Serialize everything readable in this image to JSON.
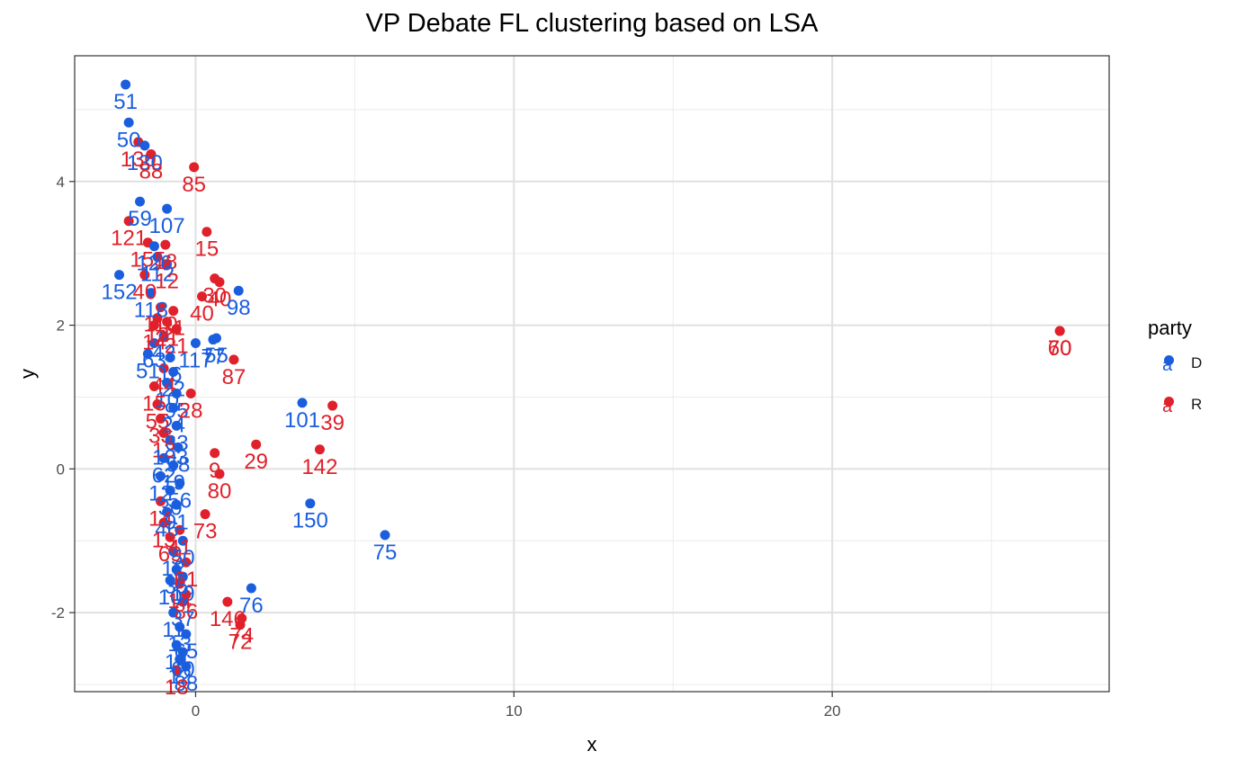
{
  "chart_data": {
    "type": "scatter",
    "title": "VP Debate FL clustering based on LSA",
    "xlabel": "x",
    "ylabel": "y",
    "xlim": [
      -3.8,
      28.7
    ],
    "ylim": [
      -3.1,
      5.75
    ],
    "xticks": [
      0,
      10,
      20
    ],
    "yticks": [
      -2,
      0,
      2,
      4
    ],
    "grid": true,
    "legend": {
      "title": "party",
      "position": "right",
      "entries": [
        "D",
        "R"
      ]
    },
    "colors": {
      "D": "#1a5ede",
      "R": "#e0202a"
    },
    "points": [
      {
        "x": -2.2,
        "y": 5.35,
        "label": "51",
        "party": "D"
      },
      {
        "x": -2.1,
        "y": 4.82,
        "label": "50",
        "party": "D"
      },
      {
        "x": -1.8,
        "y": 4.55,
        "label": "130",
        "party": "R"
      },
      {
        "x": -1.6,
        "y": 4.5,
        "label": "130",
        "party": "D"
      },
      {
        "x": -1.4,
        "y": 4.38,
        "label": "88",
        "party": "R"
      },
      {
        "x": -0.05,
        "y": 4.2,
        "label": "85",
        "party": "R"
      },
      {
        "x": -1.75,
        "y": 3.72,
        "label": "59",
        "party": "D"
      },
      {
        "x": -0.9,
        "y": 3.62,
        "label": "107",
        "party": "D"
      },
      {
        "x": -2.1,
        "y": 3.45,
        "label": "121",
        "party": "R"
      },
      {
        "x": 0.35,
        "y": 3.3,
        "label": "15",
        "party": "R"
      },
      {
        "x": -1.5,
        "y": 3.15,
        "label": "155",
        "party": "R"
      },
      {
        "x": -1.3,
        "y": 3.1,
        "label": "126",
        "party": "D"
      },
      {
        "x": -0.95,
        "y": 3.12,
        "label": "18",
        "party": "R"
      },
      {
        "x": -1.2,
        "y": 2.95,
        "label": "112",
        "party": "D"
      },
      {
        "x": -0.9,
        "y": 2.85,
        "label": "12",
        "party": "R"
      },
      {
        "x": -2.4,
        "y": 2.7,
        "label": "152",
        "party": "D"
      },
      {
        "x": -1.6,
        "y": 2.7,
        "label": "40",
        "party": "R"
      },
      {
        "x": 0.6,
        "y": 2.65,
        "label": "30",
        "party": "R"
      },
      {
        "x": 0.75,
        "y": 2.6,
        "label": "40",
        "party": "R"
      },
      {
        "x": 1.35,
        "y": 2.48,
        "label": "98",
        "party": "D"
      },
      {
        "x": 0.2,
        "y": 2.4,
        "label": "40",
        "party": "R"
      },
      {
        "x": -1.4,
        "y": 2.45,
        "label": "118",
        "party": "D"
      },
      {
        "x": -1.1,
        "y": 2.25,
        "label": "110",
        "party": "R"
      },
      {
        "x": -0.7,
        "y": 2.2,
        "label": "31",
        "party": "R"
      },
      {
        "x": -1.2,
        "y": 2.1,
        "label": "13",
        "party": "R"
      },
      {
        "x": -0.9,
        "y": 2.05,
        "label": "21",
        "party": "R"
      },
      {
        "x": -1.3,
        "y": 2.0,
        "label": "14",
        "party": "R"
      },
      {
        "x": -0.6,
        "y": 1.95,
        "label": "21",
        "party": "R"
      },
      {
        "x": -1.0,
        "y": 1.85,
        "label": "42",
        "party": "D"
      },
      {
        "x": -1.3,
        "y": 1.75,
        "label": "63",
        "party": "D"
      },
      {
        "x": 0.55,
        "y": 1.8,
        "label": "77",
        "party": "D"
      },
      {
        "x": 0.65,
        "y": 1.82,
        "label": "55",
        "party": "D"
      },
      {
        "x": 0.0,
        "y": 1.75,
        "label": "117",
        "party": "D"
      },
      {
        "x": -1.5,
        "y": 1.6,
        "label": "51",
        "party": "D"
      },
      {
        "x": -0.8,
        "y": 1.55,
        "label": "16",
        "party": "D"
      },
      {
        "x": 1.2,
        "y": 1.52,
        "label": "87",
        "party": "R"
      },
      {
        "x": -1.0,
        "y": 1.4,
        "label": "44",
        "party": "R"
      },
      {
        "x": -0.7,
        "y": 1.35,
        "label": "22",
        "party": "D"
      },
      {
        "x": -0.9,
        "y": 1.2,
        "label": "10",
        "party": "D"
      },
      {
        "x": -1.3,
        "y": 1.15,
        "label": "15",
        "party": "R"
      },
      {
        "x": -0.6,
        "y": 1.05,
        "label": "95",
        "party": "D"
      },
      {
        "x": -0.15,
        "y": 1.05,
        "label": "28",
        "party": "R"
      },
      {
        "x": -1.2,
        "y": 0.9,
        "label": "55",
        "party": "R"
      },
      {
        "x": -0.7,
        "y": 0.85,
        "label": "24",
        "party": "D"
      },
      {
        "x": -1.1,
        "y": 0.7,
        "label": "33",
        "party": "R"
      },
      {
        "x": -0.6,
        "y": 0.6,
        "label": "63",
        "party": "D"
      },
      {
        "x": -1.0,
        "y": 0.5,
        "label": "13",
        "party": "R"
      },
      {
        "x": -0.8,
        "y": 0.4,
        "label": "103",
        "party": "D"
      },
      {
        "x": -0.55,
        "y": 0.3,
        "label": "58",
        "party": "D"
      },
      {
        "x": 3.35,
        "y": 0.92,
        "label": "101",
        "party": "D"
      },
      {
        "x": 4.3,
        "y": 0.88,
        "label": "39",
        "party": "R"
      },
      {
        "x": 1.9,
        "y": 0.34,
        "label": "29",
        "party": "R"
      },
      {
        "x": 3.9,
        "y": 0.27,
        "label": "142",
        "party": "R"
      },
      {
        "x": 0.6,
        "y": 0.22,
        "label": "9",
        "party": "R"
      },
      {
        "x": 0.75,
        "y": -0.07,
        "label": "80",
        "party": "R"
      },
      {
        "x": -1.0,
        "y": 0.15,
        "label": "62",
        "party": "D"
      },
      {
        "x": -0.7,
        "y": 0.05,
        "label": "19",
        "party": "D"
      },
      {
        "x": -1.1,
        "y": -0.1,
        "label": "12",
        "party": "D"
      },
      {
        "x": -0.5,
        "y": -0.2,
        "label": "56",
        "party": "D"
      },
      {
        "x": -0.8,
        "y": -0.3,
        "label": "30",
        "party": "D"
      },
      {
        "x": -1.1,
        "y": -0.45,
        "label": "14",
        "party": "R"
      },
      {
        "x": -0.6,
        "y": -0.5,
        "label": "91",
        "party": "D"
      },
      {
        "x": 3.6,
        "y": -0.48,
        "label": "150",
        "party": "D"
      },
      {
        "x": -0.9,
        "y": -0.6,
        "label": "46",
        "party": "D"
      },
      {
        "x": 0.3,
        "y": -0.63,
        "label": "73",
        "party": "R"
      },
      {
        "x": -1.0,
        "y": -0.75,
        "label": "13",
        "party": "R"
      },
      {
        "x": -0.5,
        "y": -0.85,
        "label": "41",
        "party": "R"
      },
      {
        "x": 5.95,
        "y": -0.92,
        "label": "75",
        "party": "D"
      },
      {
        "x": -0.8,
        "y": -0.95,
        "label": "69",
        "party": "R"
      },
      {
        "x": -0.4,
        "y": -1.0,
        "label": "50",
        "party": "D"
      },
      {
        "x": -0.7,
        "y": -1.15,
        "label": "12",
        "party": "D"
      },
      {
        "x": -0.3,
        "y": -1.3,
        "label": "61",
        "party": "R"
      },
      {
        "x": -0.6,
        "y": -1.4,
        "label": "35",
        "party": "D"
      },
      {
        "x": -0.4,
        "y": -1.5,
        "label": "19",
        "party": "D"
      },
      {
        "x": -0.8,
        "y": -1.55,
        "label": "10",
        "party": "D"
      },
      {
        "x": -0.5,
        "y": -1.6,
        "label": "14",
        "party": "R"
      },
      {
        "x": 1.75,
        "y": -1.66,
        "label": "76",
        "party": "D"
      },
      {
        "x": -0.3,
        "y": -1.75,
        "label": "86",
        "party": "R"
      },
      {
        "x": 1.0,
        "y": -1.85,
        "label": "146",
        "party": "R"
      },
      {
        "x": -0.4,
        "y": -1.85,
        "label": "37",
        "party": "D"
      },
      {
        "x": -0.7,
        "y": -2.0,
        "label": "11",
        "party": "D"
      },
      {
        "x": 1.4,
        "y": -2.17,
        "label": "72",
        "party": "R"
      },
      {
        "x": 1.45,
        "y": -2.08,
        "label": "74",
        "party": "R"
      },
      {
        "x": -0.5,
        "y": -2.2,
        "label": "13",
        "party": "D"
      },
      {
        "x": -0.3,
        "y": -2.3,
        "label": "65",
        "party": "D"
      },
      {
        "x": -0.6,
        "y": -2.45,
        "label": "14",
        "party": "D"
      },
      {
        "x": -0.4,
        "y": -2.55,
        "label": "60",
        "party": "D"
      },
      {
        "x": -0.5,
        "y": -2.65,
        "label": "12",
        "party": "D"
      },
      {
        "x": -0.3,
        "y": -2.75,
        "label": "88",
        "party": "D"
      },
      {
        "x": -0.6,
        "y": -2.8,
        "label": "18",
        "party": "R"
      },
      {
        "x": 27.15,
        "y": 1.92,
        "label": "60",
        "party": "R"
      },
      {
        "x": 27.15,
        "y": 1.92,
        "label": "70",
        "party": "R"
      }
    ]
  }
}
